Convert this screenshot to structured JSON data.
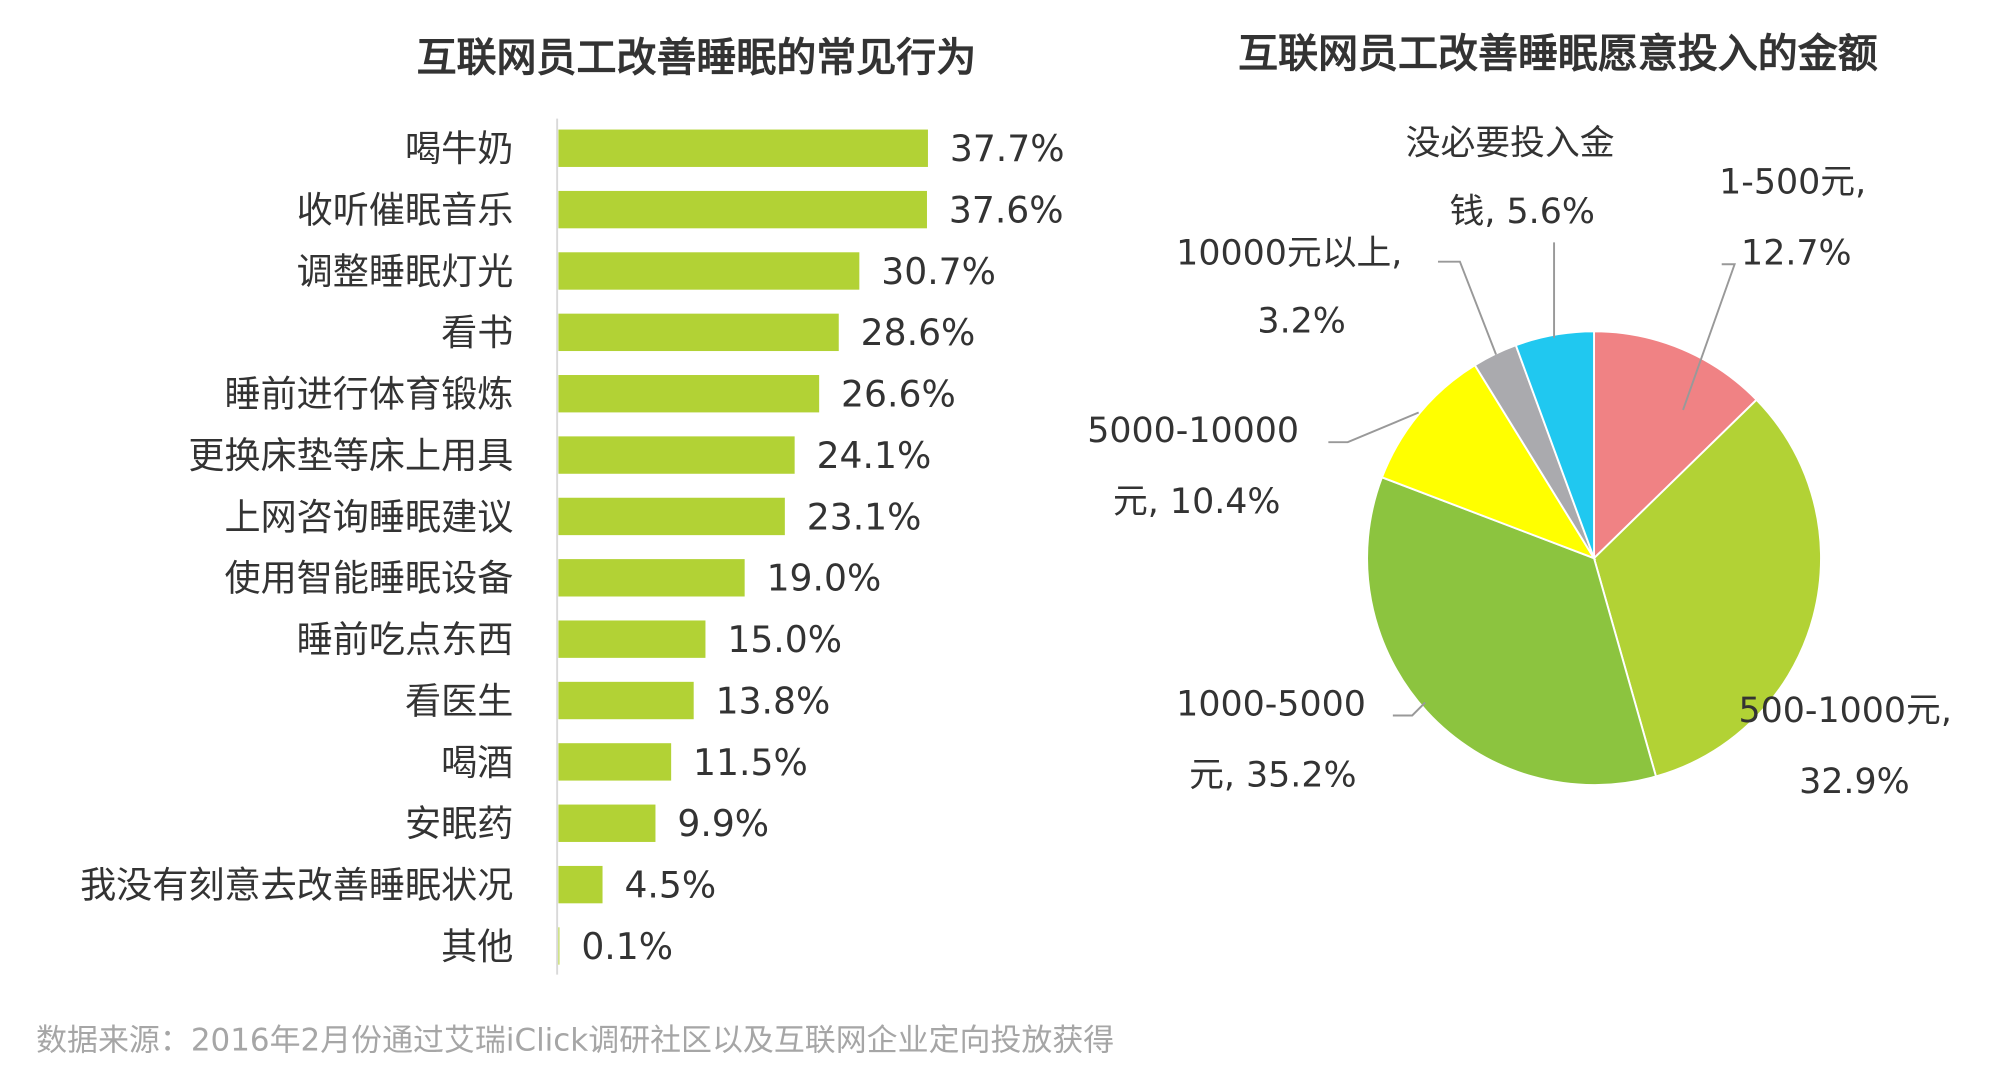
{
  "chart_data": [
    {
      "type": "bar",
      "orientation": "horizontal",
      "title": "互联网员工改善睡眠的常见行为",
      "categories": [
        "喝牛奶",
        "收听催眠音乐",
        "调整睡眠灯光",
        "看书",
        "睡前进行体育锻炼",
        "更换床垫等床上用具",
        "上网咨询睡眠建议",
        "使用智能睡眠设备",
        "睡前吃点东西",
        "看医生",
        "喝酒",
        "安眠药",
        "我没有刻意去改善睡眠状况",
        "其他"
      ],
      "values": [
        37.7,
        37.6,
        30.7,
        28.6,
        26.6,
        24.1,
        23.1,
        19.0,
        15.0,
        13.8,
        11.5,
        9.9,
        4.5,
        0.1
      ],
      "labels": [
        "37.7%",
        "37.6%",
        "30.7%",
        "28.6%",
        "26.6%",
        "24.1%",
        "23.1%",
        "19.0%",
        "15.0%",
        "13.8%",
        "11.5%",
        "9.9%",
        "4.5%",
        "0.1%"
      ],
      "unit": "%",
      "color": "#b2d235"
    },
    {
      "type": "pie",
      "title": "互联网员工改善睡眠愿意投入的金额",
      "slices": [
        {
          "label_line1": "1-500元,",
          "label_line2": "12.7%",
          "value": 12.7,
          "color": "#f08284"
        },
        {
          "label_line1": "500-1000元,",
          "label_line2": "32.9%",
          "value": 32.9,
          "color": "#b2d235"
        },
        {
          "label_line1": "1000-5000",
          "label_line2": "元, 35.2%",
          "value": 35.2,
          "color": "#8cc43f"
        },
        {
          "label_line1": "5000-10000",
          "label_line2": "元, 10.4%",
          "value": 10.4,
          "color": "#ffff00"
        },
        {
          "label_line1": "10000元以上,",
          "label_line2": "3.2%",
          "value": 3.2,
          "color": "#aaaaae"
        },
        {
          "label_line1": "没必要投入金",
          "label_line2": "钱, 5.6%",
          "value": 5.6,
          "color": "#20c8f0"
        }
      ]
    }
  ],
  "footer": {
    "source": "数据来源：2016年2月份通过艾瑞iClick调研社区以及互联网企业定向投放获得"
  }
}
